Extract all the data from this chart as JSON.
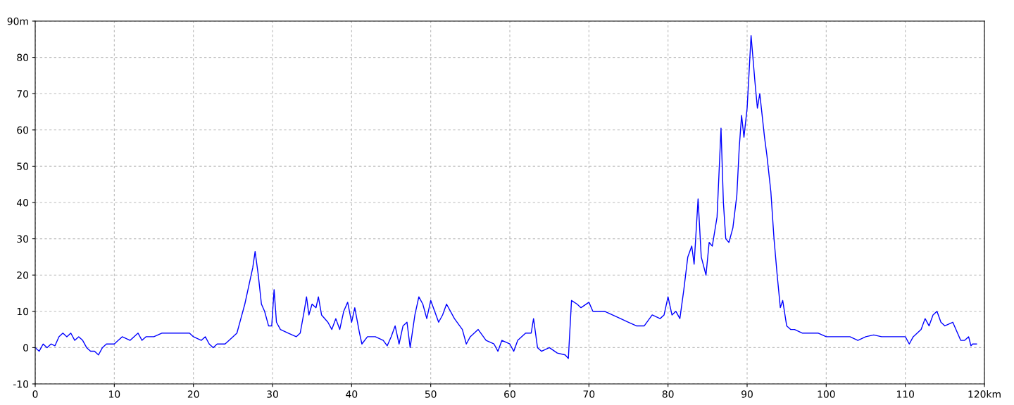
{
  "chart_data": {
    "type": "line",
    "x": [
      0,
      0.5,
      1,
      1.5,
      2,
      2.5,
      3,
      3.5,
      4,
      4.5,
      5,
      5.5,
      6,
      6.5,
      7,
      7.5,
      8,
      8.5,
      9,
      10,
      10.5,
      11,
      12,
      13,
      13.5,
      14,
      15,
      16,
      17,
      18,
      19,
      19.5,
      20,
      21,
      21.5,
      22,
      22.5,
      23,
      24,
      25,
      25.5,
      26,
      26.5,
      27,
      27.5,
      27.8,
      28.2,
      28.6,
      29,
      29.5,
      29.9,
      30.2,
      30.5,
      31,
      32,
      33,
      33.5,
      34,
      34.3,
      34.6,
      35,
      35.5,
      35.8,
      36.2,
      37,
      37.5,
      38,
      38.5,
      39,
      39.5,
      40,
      40.4,
      41,
      41.3,
      42,
      43,
      44,
      44.5,
      45,
      45.5,
      46,
      46.5,
      47,
      47.4,
      48,
      48.5,
      49,
      49.5,
      50,
      50.5,
      51,
      51.5,
      52,
      53,
      54,
      54.5,
      55,
      56,
      57,
      58,
      58.5,
      59,
      60,
      60.5,
      61,
      62,
      62.7,
      63,
      63.5,
      64,
      65,
      66,
      67,
      67.4,
      67.8,
      68.5,
      69,
      70,
      70.5,
      72,
      74,
      75,
      76,
      77,
      78,
      79,
      79.5,
      80,
      80.5,
      81,
      81.5,
      82,
      82.5,
      83,
      83.3,
      83.8,
      84.2,
      84.8,
      85.2,
      85.6,
      86.2,
      86.7,
      87,
      87.3,
      87.7,
      88.2,
      88.7,
      89,
      89.3,
      89.6,
      90,
      90.5,
      91,
      91.3,
      91.6,
      92.2,
      92.5,
      93,
      93.4,
      93.8,
      94.2,
      94.5,
      95,
      95.5,
      96,
      97,
      98,
      99,
      100,
      101,
      103,
      104,
      105,
      106,
      107,
      109,
      110,
      110.5,
      111,
      112,
      112.5,
      113,
      113.5,
      114,
      114.5,
      115,
      116,
      117,
      117.5,
      118,
      118.3,
      118.5,
      119
    ],
    "series": [
      {
        "color": "#0000ff",
        "values": [
          0,
          -1,
          1,
          0,
          1,
          0.5,
          3,
          4,
          3,
          4,
          2,
          3,
          2,
          0,
          -1,
          -1,
          -2,
          0,
          1,
          1,
          2,
          3,
          2,
          4,
          2,
          3,
          3,
          4,
          4,
          4,
          4,
          4,
          3,
          2,
          3,
          1,
          0,
          1,
          1,
          3,
          4,
          8,
          12,
          17,
          22,
          26.5,
          20,
          12,
          10,
          6,
          6,
          16,
          7,
          5,
          4,
          3,
          4,
          10,
          14,
          9,
          12,
          11,
          14,
          9,
          7,
          5,
          8,
          5,
          10,
          12.5,
          7,
          11,
          4,
          1,
          3,
          3,
          2,
          0.5,
          3,
          6,
          1,
          6,
          7,
          0,
          9,
          14,
          12,
          8,
          13,
          10,
          7,
          9,
          12,
          8,
          5,
          1,
          3,
          5,
          2,
          1,
          -1,
          2,
          1,
          -1,
          2,
          4,
          4,
          8,
          0,
          -1,
          0,
          -1.5,
          -2,
          -3,
          13,
          12,
          11,
          12.5,
          10,
          10,
          8,
          7,
          6,
          6,
          9,
          8,
          9,
          14,
          9,
          10,
          8,
          16,
          25,
          28,
          23,
          41,
          25,
          20,
          29,
          28,
          36,
          60.5,
          40,
          30,
          29,
          33,
          42,
          55,
          64,
          58,
          66,
          86,
          73,
          66,
          70,
          58,
          53,
          43,
          30,
          20,
          11,
          13,
          6,
          5,
          5,
          4,
          4,
          4,
          3,
          3,
          3,
          2,
          3,
          3.5,
          3,
          3,
          3,
          1,
          3,
          5,
          8,
          6,
          9,
          10,
          7,
          6,
          7,
          2,
          2,
          3,
          0.5,
          1,
          1
        ]
      }
    ],
    "xlim": [
      0,
      120
    ],
    "xticks": [
      0,
      10,
      20,
      30,
      40,
      50,
      60,
      70,
      80,
      90,
      100,
      110,
      {
        "value": 120,
        "label": "120km"
      }
    ],
    "ylim": [
      -10,
      90
    ],
    "yticks": [
      -10,
      0,
      10,
      20,
      30,
      40,
      50,
      60,
      70,
      80,
      {
        "value": 90,
        "label": "90m"
      }
    ],
    "grid": true,
    "line_style": "solid",
    "marker": "none",
    "legend": false
  }
}
